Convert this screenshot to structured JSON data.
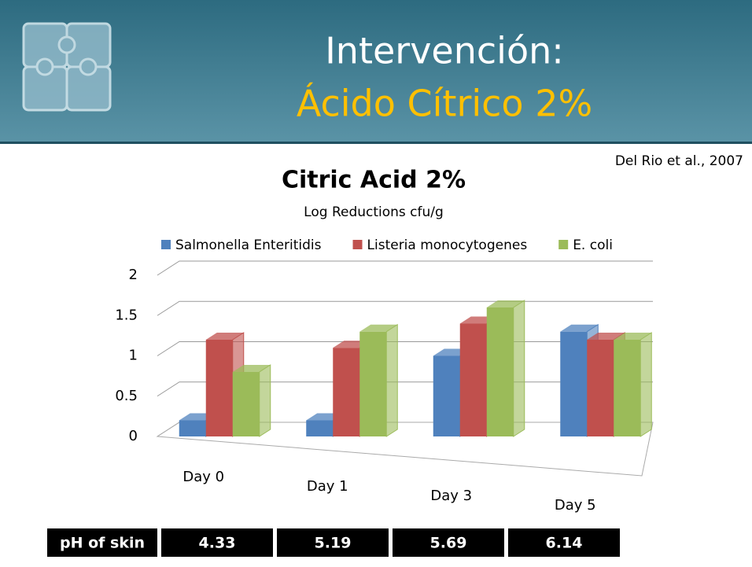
{
  "slide": {
    "title": "Intervención:",
    "subtitle": "Ácido Cítrico 2%",
    "citation": "Del Rio et al., 2007"
  },
  "chart_data": {
    "type": "bar",
    "title": "Citric Acid 2%",
    "subtitle": "Log Reductions cfu/g",
    "categories": [
      "Day 0",
      "Day 1",
      "Day 3",
      "Day 5"
    ],
    "series": [
      {
        "name": "Salmonella Enteritidis",
        "color": "#4f81bd",
        "values": [
          0.2,
          0.2,
          1.0,
          1.3
        ]
      },
      {
        "name": "Listeria monocytogenes",
        "color": "#c0504d",
        "values": [
          1.2,
          1.1,
          1.4,
          1.2
        ]
      },
      {
        "name": "E. coli",
        "color": "#9bbb59",
        "values": [
          0.8,
          1.3,
          1.6,
          1.2
        ]
      }
    ],
    "ylim": [
      0,
      2
    ],
    "yticks": [
      0,
      0.5,
      1,
      1.5,
      2
    ],
    "grid": true,
    "legend": "top"
  },
  "table": {
    "header": "pH of skin",
    "values": [
      4.33,
      5.19,
      5.69,
      6.14
    ]
  }
}
